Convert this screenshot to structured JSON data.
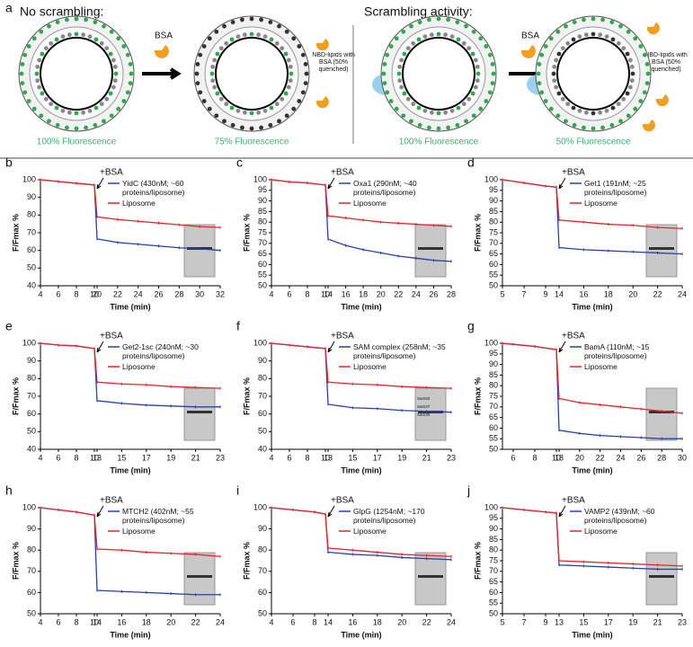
{
  "panel_a": {
    "label": "a",
    "left": {
      "title": "No scrambling:",
      "reagent": "BSA",
      "note": "NBD-lipids with BSA (50% quenched)",
      "before": "100% Fluorescence",
      "after": "75% Fluorescence"
    },
    "right": {
      "title": "Scrambling activity:",
      "reagent": "BSA",
      "note": "NBD-lipids with BSA (50% quenched)",
      "before": "100% Fluorescence",
      "after": "50% Fluorescence"
    }
  },
  "chart_data": [
    {
      "type": "line",
      "label": "b",
      "ylabel": "F/Fmax %",
      "xlabel": "Time (min)",
      "annotation": "+BSA",
      "ylim": [
        40,
        100
      ],
      "yticks": [
        40,
        50,
        60,
        70,
        80,
        90,
        100
      ],
      "xlim": [
        4,
        32
      ],
      "xbreak": [
        10,
        20
      ],
      "xticks": [
        4,
        6,
        8,
        10,
        20,
        22,
        24,
        26,
        28,
        30,
        32
      ],
      "x": [
        4,
        6,
        8,
        10,
        20,
        22,
        24,
        26,
        28,
        30,
        32
      ],
      "series": [
        {
          "name": "YidC (430nM; ~60 proteins/liposome)",
          "color": "#2b3fa8",
          "values": [
            100,
            99,
            98,
            97,
            66.5,
            64.5,
            63.5,
            62.5,
            61.5,
            61,
            60
          ]
        },
        {
          "name": "Liposome",
          "color": "#e8232a",
          "values": [
            100,
            99,
            98,
            97,
            79,
            77.5,
            76.5,
            75.5,
            74.5,
            73.5,
            73
          ]
        }
      ]
    },
    {
      "type": "line",
      "label": "c",
      "ylabel": "F/Fmax %",
      "xlabel": "Time (min)",
      "annotation": "+BSA",
      "ylim": [
        50,
        100
      ],
      "yticks": [
        50,
        55,
        60,
        65,
        70,
        75,
        80,
        85,
        90,
        95,
        100
      ],
      "xlim": [
        4,
        28
      ],
      "xbreak": [
        10,
        14
      ],
      "xticks": [
        4,
        6,
        8,
        10,
        14,
        16,
        18,
        20,
        22,
        24,
        26,
        28
      ],
      "x": [
        4,
        6,
        8,
        10,
        14,
        16,
        18,
        20,
        22,
        24,
        26,
        28
      ],
      "series": [
        {
          "name": "Oxa1 (290nM; ~40 proteins/liposome)",
          "color": "#2b3fa8",
          "values": [
            100,
            99,
            98.5,
            97.5,
            72,
            69,
            67,
            65.5,
            64,
            63,
            62,
            61.5
          ]
        },
        {
          "name": "Liposome",
          "color": "#e8232a",
          "values": [
            100,
            99,
            98.5,
            97.5,
            83,
            82,
            81,
            80,
            79.5,
            79,
            78.5,
            78
          ]
        }
      ]
    },
    {
      "type": "line",
      "label": "d",
      "ylabel": "F/Fmax %",
      "xlabel": "Time (min)",
      "annotation": "+BSA",
      "ylim": [
        50,
        100
      ],
      "yticks": [
        50,
        55,
        60,
        65,
        70,
        75,
        80,
        85,
        90,
        95,
        100
      ],
      "xlim": [
        5,
        24
      ],
      "xbreak": [
        10,
        14
      ],
      "xticks": [
        5,
        7,
        9,
        14,
        16,
        18,
        20,
        22,
        24
      ],
      "x": [
        5,
        7,
        9,
        10,
        14,
        16,
        18,
        20,
        22,
        24
      ],
      "series": [
        {
          "name": "Get1 (191nM; ~25 proteins/liposome)",
          "color": "#2b3fa8",
          "values": [
            100,
            98.5,
            97,
            96.5,
            68,
            67,
            66.5,
            66,
            65.5,
            65
          ]
        },
        {
          "name": "Liposome",
          "color": "#e8232a",
          "values": [
            100,
            98.5,
            97,
            96.5,
            81,
            80,
            79,
            78.5,
            77.5,
            77
          ]
        }
      ]
    },
    {
      "type": "line",
      "label": "e",
      "ylabel": "F/Fmax %",
      "xlabel": "Time (min)",
      "annotation": "+BSA",
      "ylim": [
        40,
        100
      ],
      "yticks": [
        40,
        50,
        60,
        70,
        80,
        90,
        100
      ],
      "xlim": [
        4,
        23
      ],
      "xbreak": [
        10,
        13
      ],
      "xticks": [
        4,
        6,
        8,
        10,
        13,
        15,
        17,
        19,
        21,
        23
      ],
      "x": [
        4,
        6,
        8,
        10,
        13,
        15,
        17,
        19,
        21,
        23
      ],
      "series": [
        {
          "name": "Get2-1sc (240nM; ~30 proteins/liposome)",
          "color": "#2b3fa8",
          "values": [
            100,
            99,
            98.5,
            97,
            67.5,
            66,
            65,
            64.5,
            64,
            64
          ]
        },
        {
          "name": "Liposome",
          "color": "#e8232a",
          "values": [
            100,
            99,
            98.5,
            97,
            78,
            77,
            76.5,
            75.5,
            75,
            74.5
          ]
        }
      ]
    },
    {
      "type": "line",
      "label": "f",
      "ylabel": "F/Fmax %",
      "xlabel": "Time (min)",
      "annotation": "+BSA",
      "inset_labels": [
        "Sam50",
        "Sam37",
        "Sam35"
      ],
      "ylim": [
        40,
        100
      ],
      "yticks": [
        40,
        50,
        60,
        70,
        80,
        90,
        100
      ],
      "xlim": [
        4,
        23
      ],
      "xbreak": [
        10,
        13
      ],
      "xticks": [
        4,
        6,
        8,
        10,
        13,
        15,
        17,
        19,
        21,
        23
      ],
      "x": [
        4,
        6,
        8,
        10,
        13,
        15,
        17,
        19,
        21,
        23
      ],
      "series": [
        {
          "name": "SAM complex (258nM; ~35 proteins/liposome)",
          "color": "#2b3fa8",
          "values": [
            100,
            99,
            98,
            97,
            65.5,
            63.5,
            63,
            62,
            61.5,
            61
          ]
        },
        {
          "name": "Liposome",
          "color": "#e8232a",
          "values": [
            100,
            99,
            98,
            97,
            78,
            77,
            76.5,
            75.5,
            75,
            74.5
          ]
        }
      ]
    },
    {
      "type": "line",
      "label": "g",
      "ylabel": "F/Fmax %",
      "xlabel": "Time (min)",
      "annotation": "+BSA",
      "ylim": [
        50,
        100
      ],
      "yticks": [
        50,
        55,
        60,
        65,
        70,
        75,
        80,
        85,
        90,
        95,
        100
      ],
      "xlim": [
        5,
        30
      ],
      "xbreak": [
        10,
        18
      ],
      "xticks": [
        6,
        8,
        10,
        18,
        20,
        22,
        24,
        26,
        28,
        30
      ],
      "x": [
        5,
        6,
        8,
        10,
        18,
        20,
        22,
        24,
        26,
        28,
        30
      ],
      "series": [
        {
          "name": "BamA (110nM; ~15 proteins/liposome)",
          "color": "#2b3fa8",
          "values": [
            100,
            99.5,
            98.5,
            97,
            59,
            57.5,
            56.5,
            56,
            55.5,
            55,
            55
          ]
        },
        {
          "name": "Liposome",
          "color": "#e8232a",
          "values": [
            100,
            99.5,
            98.5,
            97,
            74,
            72,
            71,
            70,
            69,
            68,
            67
          ]
        }
      ]
    },
    {
      "type": "line",
      "label": "h",
      "ylabel": "F/Fmax %",
      "xlabel": "Time (min)",
      "annotation": "+BSA",
      "ylim": [
        50,
        100
      ],
      "yticks": [
        50,
        60,
        70,
        80,
        90,
        100
      ],
      "xlim": [
        4,
        24
      ],
      "xbreak": [
        10,
        14
      ],
      "xticks": [
        4,
        6,
        8,
        10,
        14,
        16,
        18,
        20,
        22,
        24
      ],
      "x": [
        4,
        6,
        8,
        10,
        14,
        16,
        18,
        20,
        22,
        24
      ],
      "series": [
        {
          "name": "MTCH2 (402nM; ~55 proteins/liposome)",
          "color": "#2b3fa8",
          "values": [
            100,
            99,
            98,
            96.5,
            61,
            60.5,
            60,
            59.5,
            59,
            59
          ]
        },
        {
          "name": "Liposome",
          "color": "#e8232a",
          "values": [
            100,
            99,
            98,
            96.5,
            80.5,
            80,
            79,
            78.5,
            78,
            77
          ]
        }
      ]
    },
    {
      "type": "line",
      "label": "i",
      "ylabel": "F/Fmax %",
      "xlabel": "Time (min)",
      "annotation": "+BSA",
      "ylim": [
        50,
        100
      ],
      "yticks": [
        50,
        60,
        70,
        80,
        90,
        100
      ],
      "xlim": [
        4,
        24
      ],
      "xbreak": [
        9,
        14
      ],
      "xticks": [
        4,
        6,
        8,
        14,
        16,
        18,
        20,
        22,
        24
      ],
      "x": [
        4,
        6,
        8,
        9,
        14,
        16,
        18,
        20,
        22,
        24
      ],
      "series": [
        {
          "name": "GlpG (1254nM; ~170 proteins/liposome)",
          "color": "#2b3fa8",
          "values": [
            100,
            99,
            98,
            97,
            79,
            78,
            77.5,
            76.5,
            76,
            75.5
          ]
        },
        {
          "name": "Liposome",
          "color": "#e8232a",
          "values": [
            100,
            99,
            98,
            97,
            81,
            80,
            79,
            78,
            77.5,
            77
          ]
        }
      ]
    },
    {
      "type": "line",
      "label": "j",
      "ylabel": "F/Fmax %",
      "xlabel": "Time (min)",
      "annotation": "+BSA",
      "ylim": [
        50,
        100
      ],
      "yticks": [
        50,
        55,
        60,
        65,
        70,
        75,
        80,
        85,
        90,
        95,
        100
      ],
      "xlim": [
        5,
        23
      ],
      "xbreak": [
        10,
        13
      ],
      "xticks": [
        5,
        7,
        9,
        13,
        15,
        17,
        19,
        21,
        23
      ],
      "x": [
        5,
        7,
        9,
        10,
        13,
        15,
        17,
        19,
        21,
        23
      ],
      "series": [
        {
          "name": "VAMP2 (439nM; ~60 proteins/liposome)",
          "color": "#2b3fa8",
          "values": [
            100,
            99,
            98,
            97.5,
            73,
            72.5,
            72,
            71.5,
            71,
            71
          ]
        },
        {
          "name": "Liposome",
          "color": "#e8232a",
          "values": [
            100,
            99,
            98,
            97.5,
            75,
            74.5,
            74,
            73.5,
            73,
            72.5
          ]
        }
      ]
    }
  ]
}
